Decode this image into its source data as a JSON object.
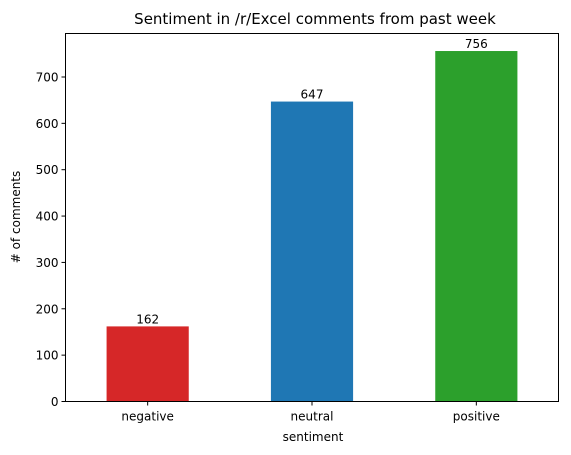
{
  "chart_data": {
    "type": "bar",
    "title": "Sentiment in /r/Excel comments from past week",
    "xlabel": "sentiment",
    "ylabel": "# of comments",
    "categories": [
      "negative",
      "neutral",
      "positive"
    ],
    "values": [
      162,
      647,
      756
    ],
    "data_labels": [
      "162",
      "647",
      "756"
    ],
    "colors": [
      "#d62728",
      "#1f77b4",
      "#2ca02c"
    ],
    "ylim": [
      0,
      793.8
    ],
    "yticks": [
      0,
      100,
      200,
      300,
      400,
      500,
      600,
      700
    ],
    "ytick_labels": [
      "0",
      "100",
      "200",
      "300",
      "400",
      "500",
      "600",
      "700"
    ],
    "grid": false,
    "legend": "none"
  }
}
